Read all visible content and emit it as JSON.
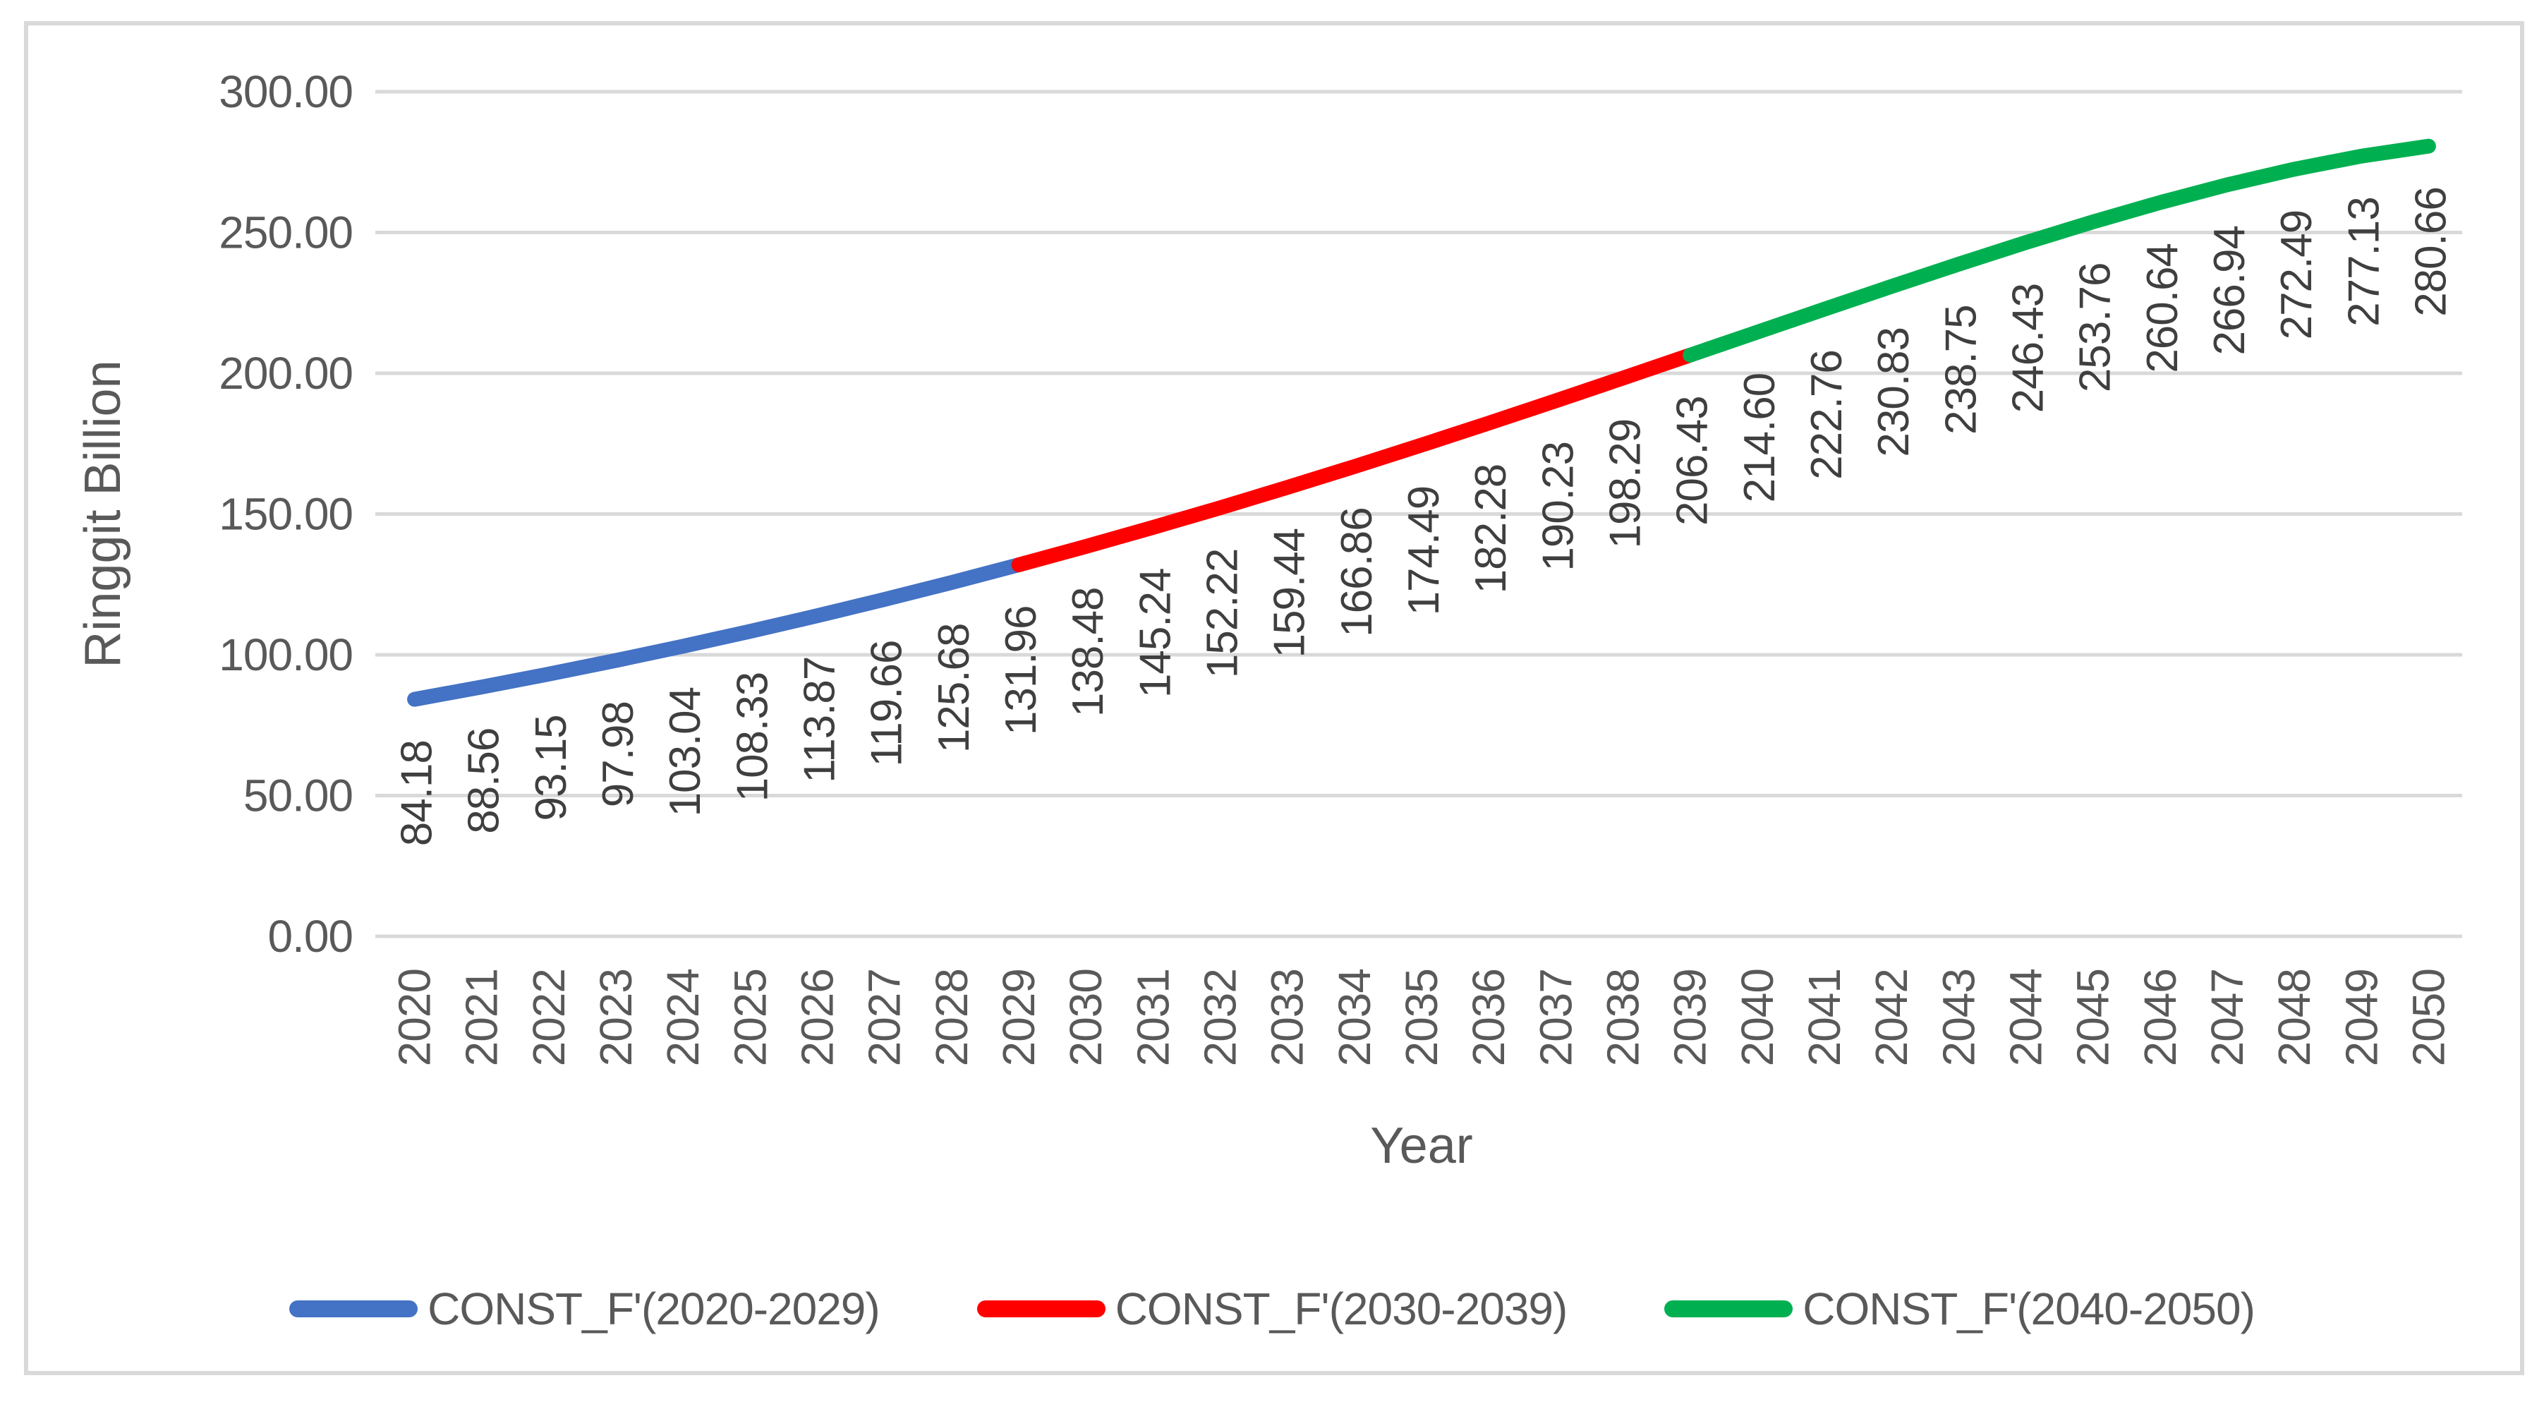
{
  "chart_data": {
    "type": "line",
    "title": "",
    "xlabel": "Year",
    "ylabel": "Ringgit Billion",
    "categories": [
      2020,
      2021,
      2022,
      2023,
      2024,
      2025,
      2026,
      2027,
      2028,
      2029,
      2030,
      2031,
      2032,
      2033,
      2034,
      2035,
      2036,
      2037,
      2038,
      2039,
      2040,
      2041,
      2042,
      2043,
      2044,
      2045,
      2046,
      2047,
      2048,
      2049,
      2050
    ],
    "series": [
      {
        "name": "CONST_F'(2020-2029)",
        "color": "#4472C4",
        "start_year": 2020,
        "values": [
          84.18,
          88.56,
          93.15,
          97.98,
          103.04,
          108.33,
          113.87,
          119.66,
          125.68,
          131.96
        ]
      },
      {
        "name": "CONST_F'(2030-2039)",
        "color": "#FF0000",
        "start_year": 2030,
        "values": [
          138.48,
          145.24,
          152.22,
          159.44,
          166.86,
          174.49,
          182.28,
          190.23,
          198.29,
          206.43
        ]
      },
      {
        "name": "CONST_F'(2040-2050)",
        "color": "#00B050",
        "start_year": 2040,
        "values": [
          214.6,
          222.76,
          230.83,
          238.75,
          246.43,
          253.76,
          260.64,
          266.94,
          272.49,
          277.13,
          280.66
        ]
      }
    ],
    "ylim": [
      0,
      300
    ],
    "y_tick_step": 50,
    "y_tick_labels": [
      "0.00",
      "50.00",
      "100.00",
      "150.00",
      "200.00",
      "250.00",
      "300.00"
    ],
    "grid": "horizontal-only",
    "legend_position": "bottom",
    "data_labels_visible": true,
    "data_label_rotation_deg": -90,
    "x_label_rotation_deg": -90,
    "colors": {
      "gridline": "#D9D9D9",
      "frame_border": "#D9D9D9",
      "axis_text": "#595959",
      "title_text": "#595959",
      "data_label_text": "#3F3F3F",
      "background": "#FFFFFF"
    }
  },
  "legend": {
    "items": [
      {
        "label": "CONST_F'(2020-2029)",
        "color": "#4472C4"
      },
      {
        "label": "CONST_F'(2030-2039)",
        "color": "#FF0000"
      },
      {
        "label": "CONST_F'(2040-2050)",
        "color": "#00B050"
      }
    ]
  },
  "axis_titles": {
    "x": "Year",
    "y": "Ringgit Billion"
  }
}
